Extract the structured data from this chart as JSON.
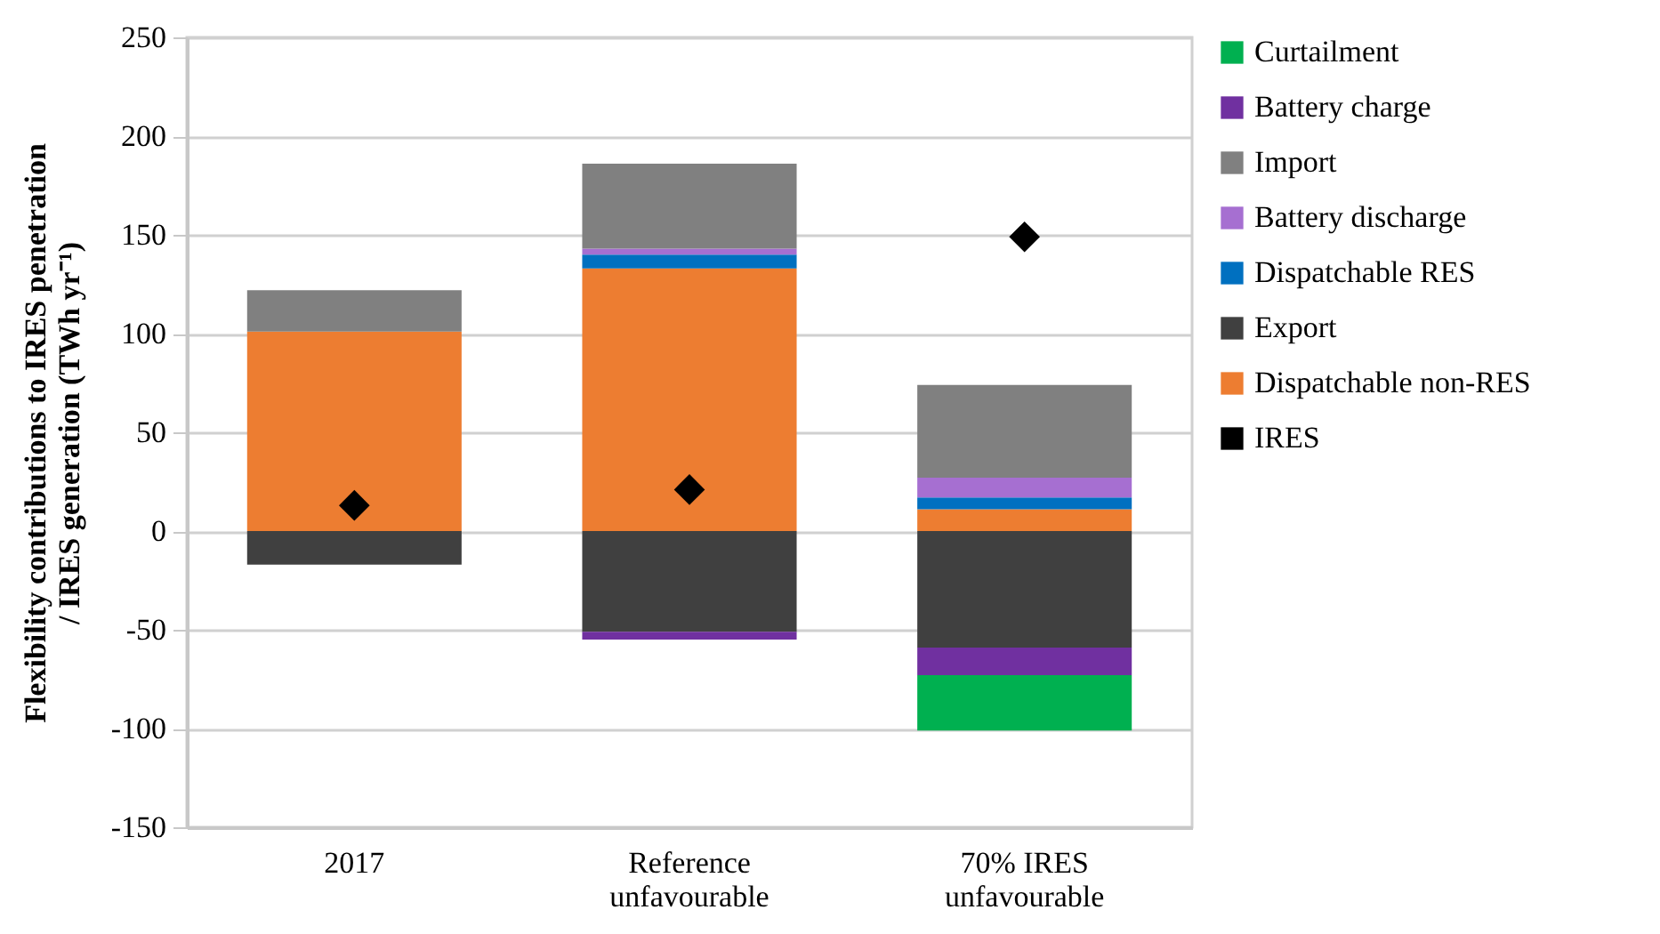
{
  "chart_data": {
    "type": "bar",
    "stacked": true,
    "ylabel": "Flexibility contributions to IRES penetration / IRES generation (TWh yr⁻¹)",
    "categories": [
      "2017",
      "Reference unfavourable",
      "70% IRES unfavourable"
    ],
    "ylim": [
      -150,
      250
    ],
    "yticks": [
      -150,
      -100,
      -50,
      0,
      50,
      100,
      150,
      200,
      250
    ],
    "grid": "y",
    "legend": "right",
    "series": [
      {
        "name": "Dispatchable non-RES",
        "color": "#ed7d31",
        "values": [
          101,
          133,
          11
        ]
      },
      {
        "name": "Export",
        "color": "#404040",
        "values": [
          -17,
          -51,
          -59
        ]
      },
      {
        "name": "Dispatchable RES",
        "color": "#0070c0",
        "values": [
          0,
          7,
          6
        ]
      },
      {
        "name": "Battery discharge",
        "color": "#a66fd1",
        "values": [
          0,
          3,
          10
        ]
      },
      {
        "name": "Import",
        "color": "#808080",
        "values": [
          21,
          43,
          47
        ]
      },
      {
        "name": "Battery charge",
        "color": "#7030a0",
        "values": [
          0,
          -4,
          -14
        ]
      },
      {
        "name": "Curtailment",
        "color": "#00b050",
        "values": [
          0,
          0,
          -28
        ]
      },
      {
        "name": "IRES",
        "type": "scatter",
        "marker": "diamond",
        "color": "#000000",
        "values": [
          13,
          21,
          149
        ]
      }
    ]
  }
}
